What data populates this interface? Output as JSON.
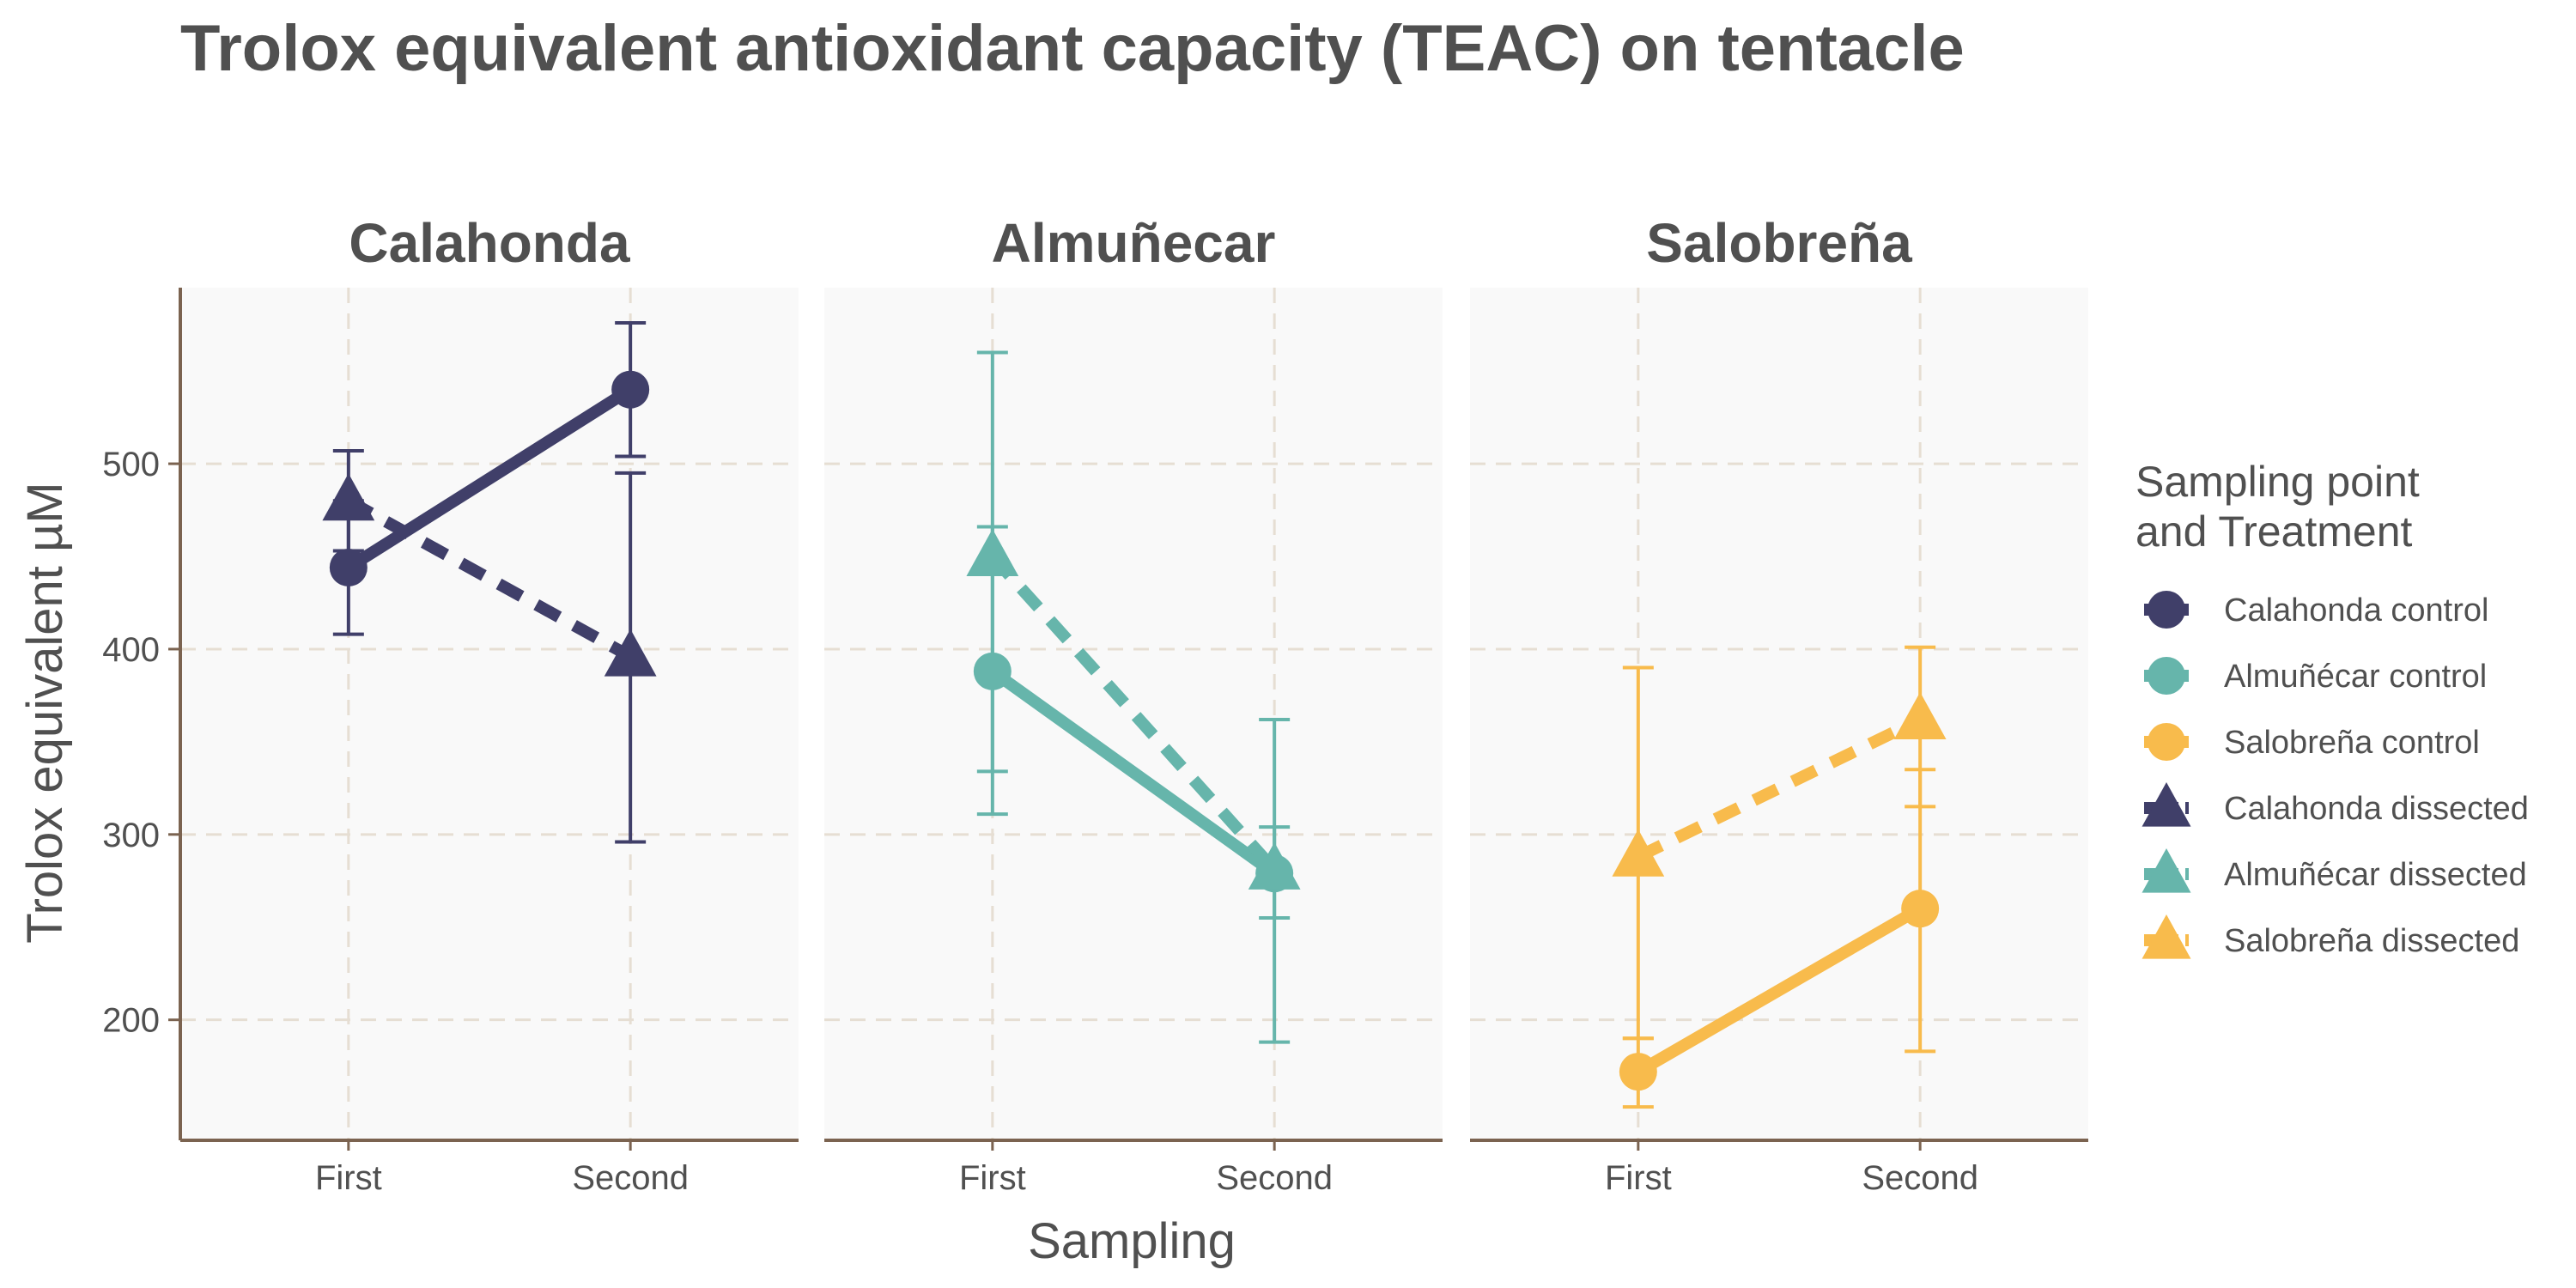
{
  "chart_data": {
    "type": "line",
    "title": "Trolox equivalent antioxidant capacity (TEAC) on tentacle",
    "xlabel": "Sampling",
    "ylabel": "Trolox equivalent µM",
    "categories": [
      "First",
      "Second"
    ],
    "ylim": [
      135,
      595
    ],
    "yticks": [
      200,
      300,
      400,
      500
    ],
    "grid": true,
    "legend": {
      "position": "right",
      "title": [
        "Sampling point",
        " and Treatment"
      ],
      "entries": [
        {
          "label": "Calahonda control",
          "color": "#403F69",
          "shape": "circle",
          "line": "solid"
        },
        {
          "label": "Almuñécar control",
          "color": "#66B5AB",
          "shape": "circle",
          "line": "solid"
        },
        {
          "label": "Salobreña control",
          "color": "#F8BB4C",
          "shape": "circle",
          "line": "solid"
        },
        {
          "label": "Calahonda dissected",
          "color": "#403F69",
          "shape": "triangle",
          "line": "dashed"
        },
        {
          "label": "Almuñécar dissected",
          "color": "#66B5AB",
          "shape": "triangle",
          "line": "dashed"
        },
        {
          "label": "Salobreña dissected",
          "color": "#F8BB4C",
          "shape": "triangle",
          "line": "dashed"
        }
      ]
    },
    "panels": [
      {
        "name": "Calahonda",
        "color": "#403F69",
        "series": [
          {
            "treatment": "control",
            "values": [
              444,
              540
            ],
            "lower": [
              408,
              504
            ],
            "upper": [
              480,
              576
            ]
          },
          {
            "treatment": "dissected",
            "values": [
              480,
              396
            ],
            "lower": [
              453,
              296
            ],
            "upper": [
              507,
              495
            ]
          }
        ]
      },
      {
        "name": "Almuñecar",
        "color": "#66B5AB",
        "series": [
          {
            "treatment": "control",
            "values": [
              388,
              279
            ],
            "lower": [
              311,
              255
            ],
            "upper": [
              466,
              304
            ]
          },
          {
            "treatment": "dissected",
            "values": [
              450,
              281
            ],
            "lower": [
              334,
              188
            ],
            "upper": [
              560,
              362
            ]
          }
        ]
      },
      {
        "name": "Salobreña",
        "color": "#F8BB4C",
        "series": [
          {
            "treatment": "control",
            "values": [
              172,
              260
            ],
            "lower": [
              153,
              183
            ],
            "upper": [
              190,
              335
            ]
          },
          {
            "treatment": "dissected",
            "values": [
              288,
              362
            ],
            "lower": [
              190,
              315
            ],
            "upper": [
              390,
              401
            ]
          }
        ]
      }
    ]
  }
}
